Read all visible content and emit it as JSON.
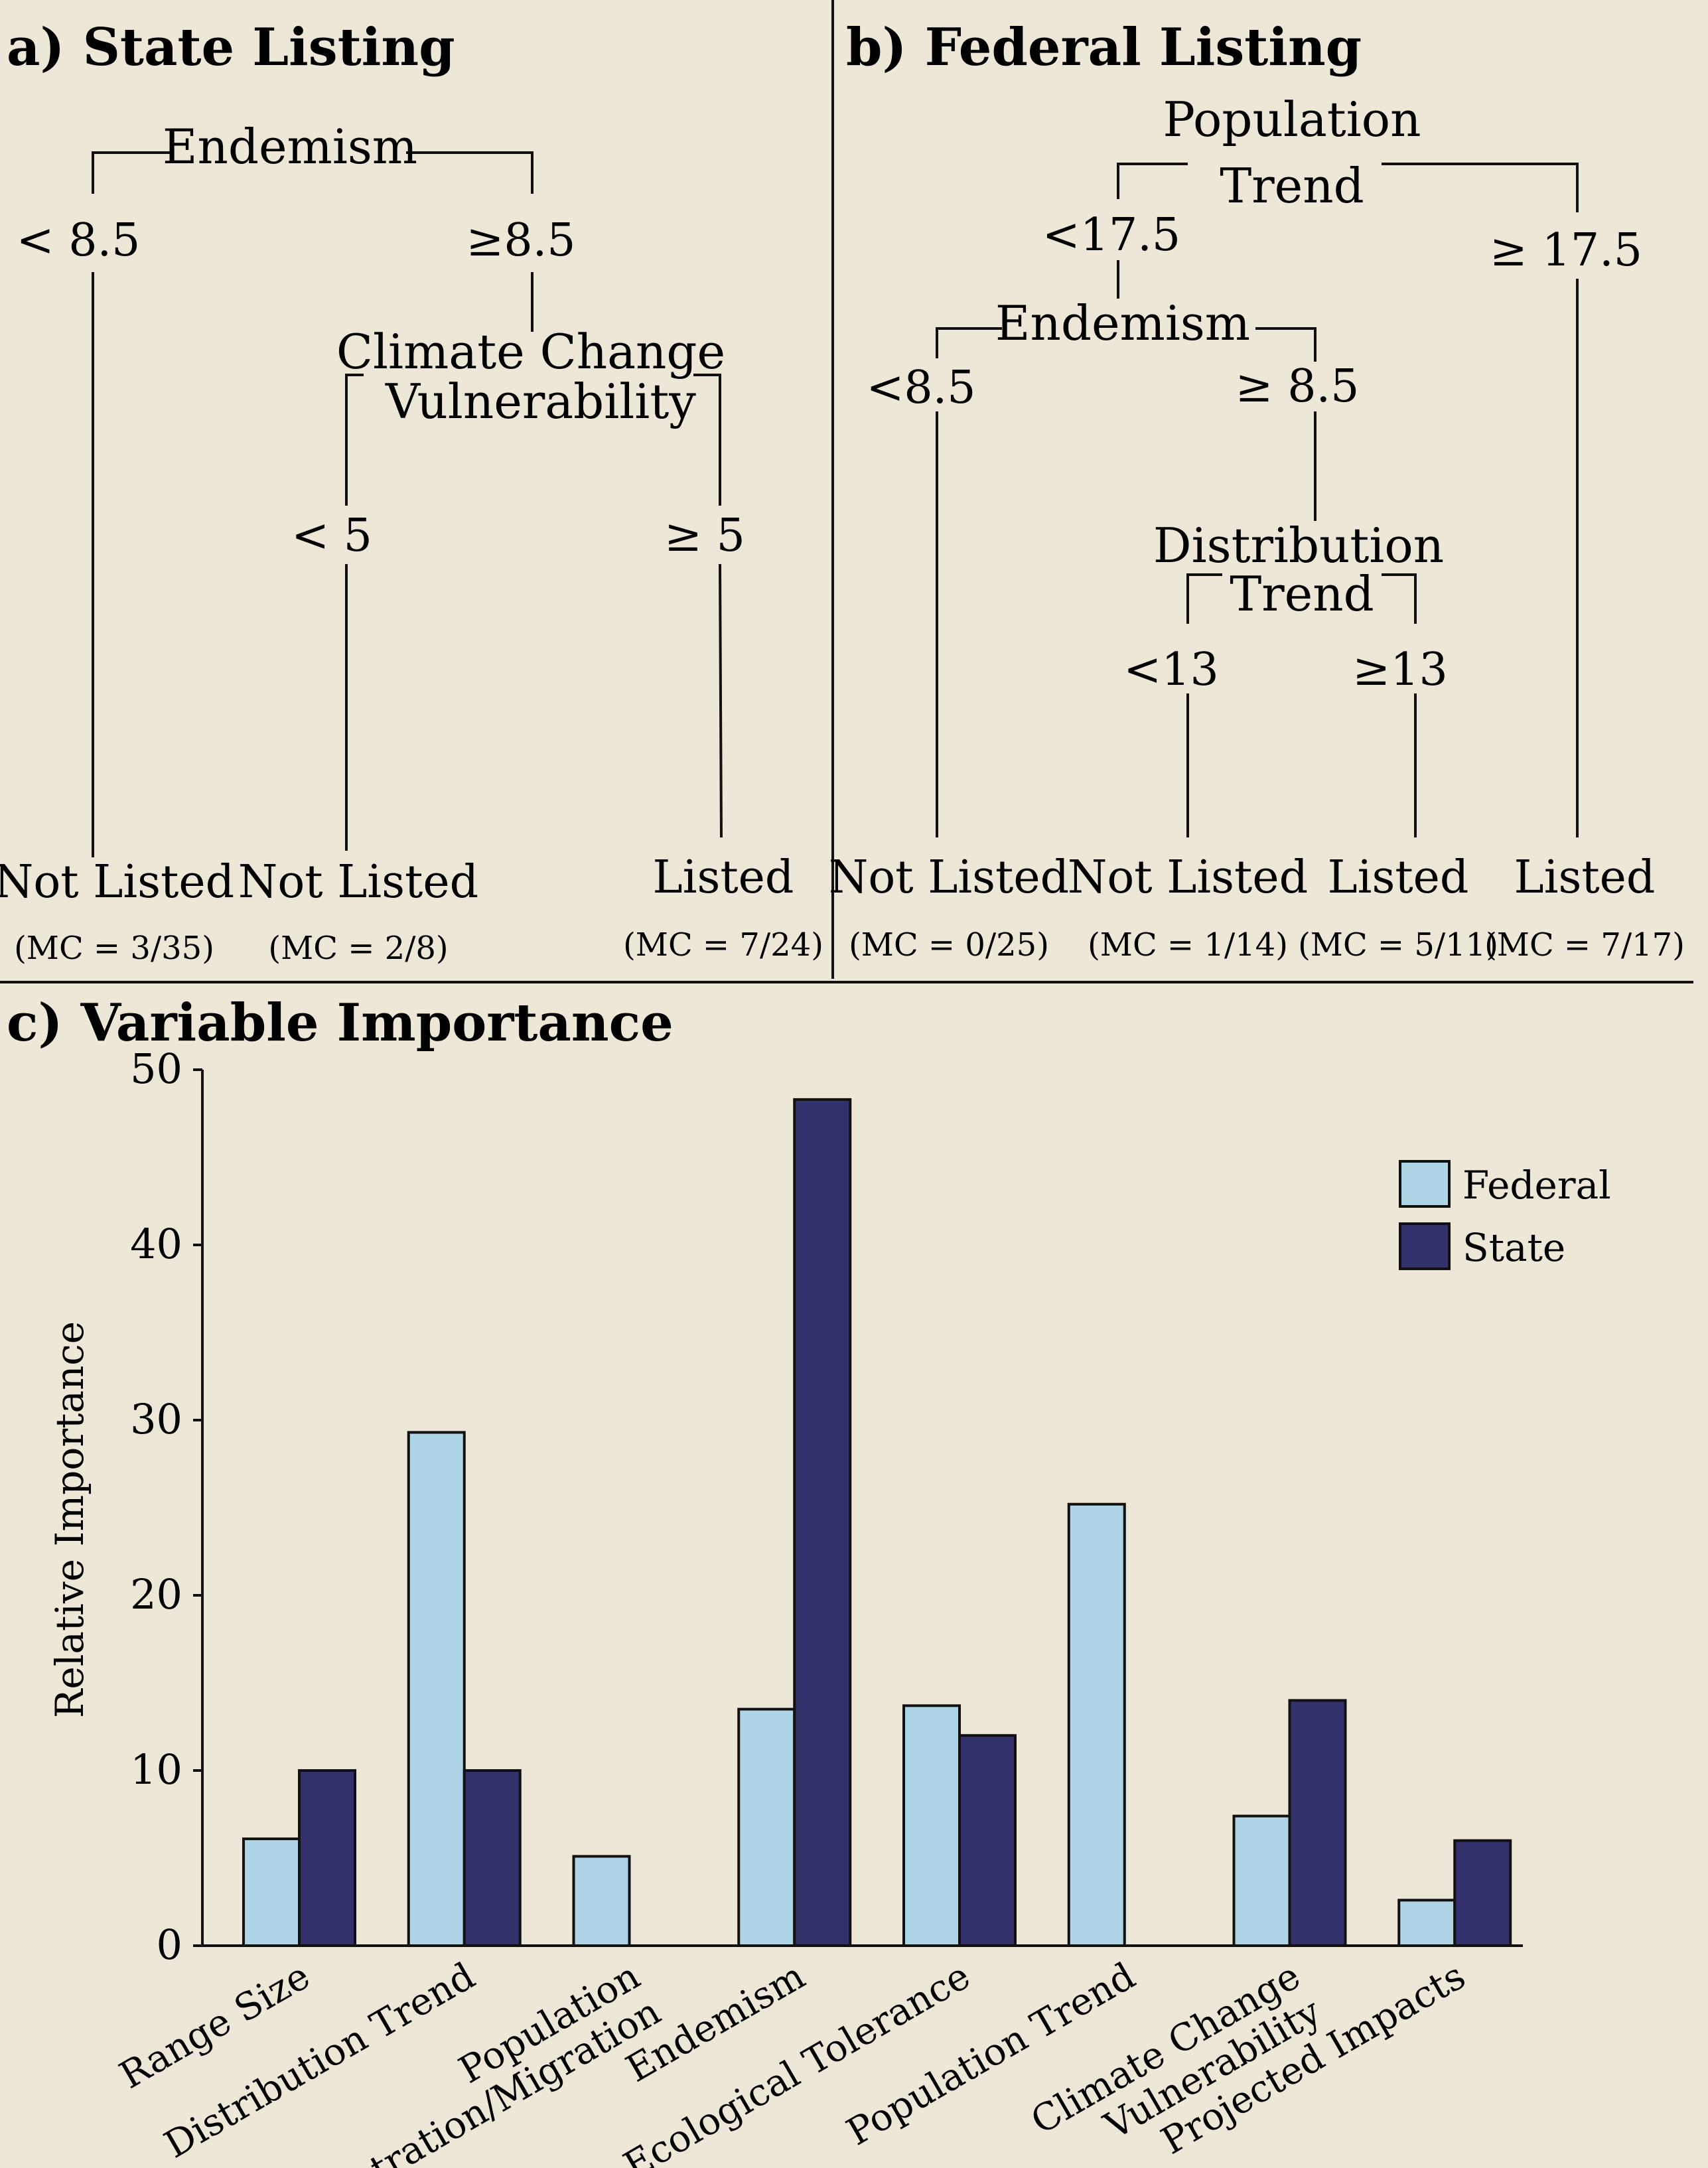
{
  "colors": {
    "background": "#ece7d6",
    "federal": "#add5e6",
    "state": "#32316b",
    "line": "#111111"
  },
  "panel_a": {
    "title": "a) State Listing",
    "root": {
      "label": "Endemism",
      "left": "< 8.5",
      "right": "≥8.5"
    },
    "node2": {
      "label_line1": "Climate Change",
      "label_line2": "Vulnerability",
      "left": "< 5",
      "right": "≥ 5"
    },
    "leaves": [
      {
        "label": "Not Listed",
        "mc": "(MC = 3/35)"
      },
      {
        "label": "Not Listed",
        "mc": "(MC = 2/8)"
      },
      {
        "label": "Listed",
        "mc": "(MC = 7/24)"
      }
    ]
  },
  "panel_b": {
    "title": "b) Federal Listing",
    "root": {
      "label_line1": "Population",
      "label_line2": "Trend",
      "left": "<17.5",
      "right": "≥ 17.5"
    },
    "node2": {
      "label": "Endemism",
      "left": "<8.5",
      "right": "≥ 8.5"
    },
    "node3": {
      "label_line1": "Distribution",
      "label_line2": "Trend",
      "left": "<13",
      "right": "≥13"
    },
    "leaves": [
      {
        "label": "Not Listed",
        "mc": "(MC = 0/25)"
      },
      {
        "label": "Not Listed",
        "mc": "(MC = 1/14)"
      },
      {
        "label": "Listed",
        "mc": "(MC = 5/11)"
      },
      {
        "label": "Listed",
        "mc": "(MC = 7/17)"
      }
    ]
  },
  "panel_c": {
    "title": "c) Variable Importance"
  },
  "chart_data": {
    "type": "bar",
    "title": "c) Variable Importance",
    "xlabel": "",
    "ylabel": "Relative Importance",
    "ylim": [
      0,
      50
    ],
    "yticks": [
      "0",
      "10",
      "20",
      "30",
      "40",
      "50"
    ],
    "legend_position": "top-right",
    "categories": [
      [
        "Range Size"
      ],
      [
        "Distribution Trend"
      ],
      [
        "Population",
        "Concentration/Migration"
      ],
      [
        "Endemism"
      ],
      [
        "Ecological Tolerance"
      ],
      [
        "Population Trend"
      ],
      [
        "Climate Change",
        "Vulnerability"
      ],
      [
        "Projected Impacts"
      ]
    ],
    "series": [
      {
        "name": "Federal",
        "values": [
          6.1,
          29.3,
          5.1,
          13.5,
          13.7,
          25.2,
          7.4,
          2.6
        ]
      },
      {
        "name": "State",
        "values": [
          10.0,
          10.0,
          0,
          48.3,
          12.0,
          0,
          14.0,
          6.0
        ]
      }
    ]
  }
}
